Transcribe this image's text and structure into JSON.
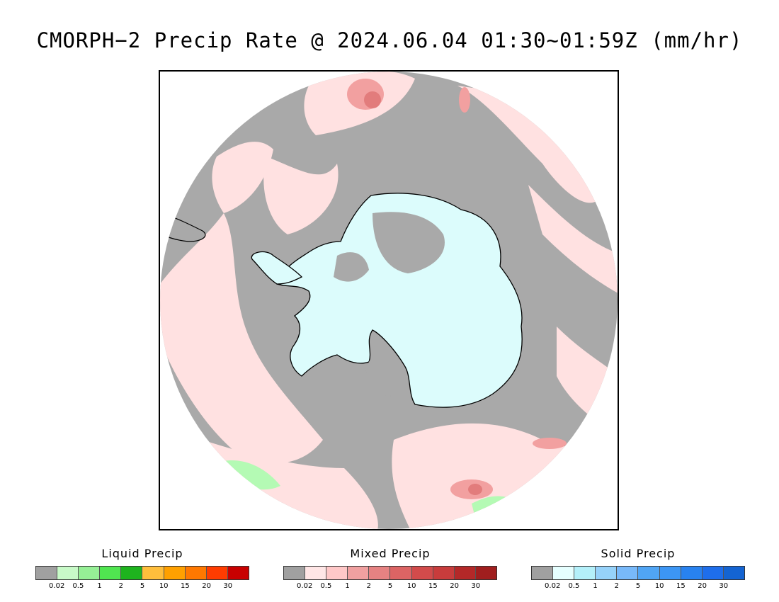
{
  "title": "CMORPH−2 Precip Rate @ 2024.06.04 01:30~01:59Z (mm/hr)",
  "map": {
    "projection": "south-polar-stereographic",
    "background_color": "#a9a9a9",
    "regions": [
      {
        "name": "antarctica",
        "fill": "#dcfcfc"
      },
      {
        "name": "mixed-precip-light",
        "fill": "#ffe1e1"
      },
      {
        "name": "mixed-precip-moderate",
        "fill": "#f2a0a0"
      },
      {
        "name": "liquid-precip-light",
        "fill": "#b4fab4"
      }
    ]
  },
  "legends": [
    {
      "id": "liquid",
      "title": "Liquid Precip",
      "colors": [
        "#a0a0a0",
        "#c8fac8",
        "#96f096",
        "#50e650",
        "#1eb41e",
        "#ffbe3c",
        "#ffa000",
        "#ff7800",
        "#ff3c00",
        "#c80000"
      ],
      "ticks": [
        "0.02",
        "0.5",
        "1",
        "2",
        "5",
        "10",
        "15",
        "20",
        "30"
      ]
    },
    {
      "id": "mixed",
      "title": "Mixed Precip",
      "colors": [
        "#a0a0a0",
        "#ffe6e6",
        "#ffc8c8",
        "#f0a0a0",
        "#e68282",
        "#dc6464",
        "#d24b4b",
        "#c83c3c",
        "#b42828",
        "#a01e1e"
      ],
      "ticks": [
        "0.02",
        "0.5",
        "1",
        "2",
        "5",
        "10",
        "15",
        "20",
        "30"
      ]
    },
    {
      "id": "solid",
      "title": "Solid Precip",
      "colors": [
        "#a0a0a0",
        "#e6ffff",
        "#b4f0fa",
        "#96d2fa",
        "#78b9fa",
        "#50a5f5",
        "#3c96f5",
        "#2882f0",
        "#1e6eeb",
        "#1464d2"
      ],
      "ticks": [
        "0.02",
        "0.5",
        "1",
        "2",
        "5",
        "10",
        "15",
        "20",
        "30"
      ]
    }
  ]
}
